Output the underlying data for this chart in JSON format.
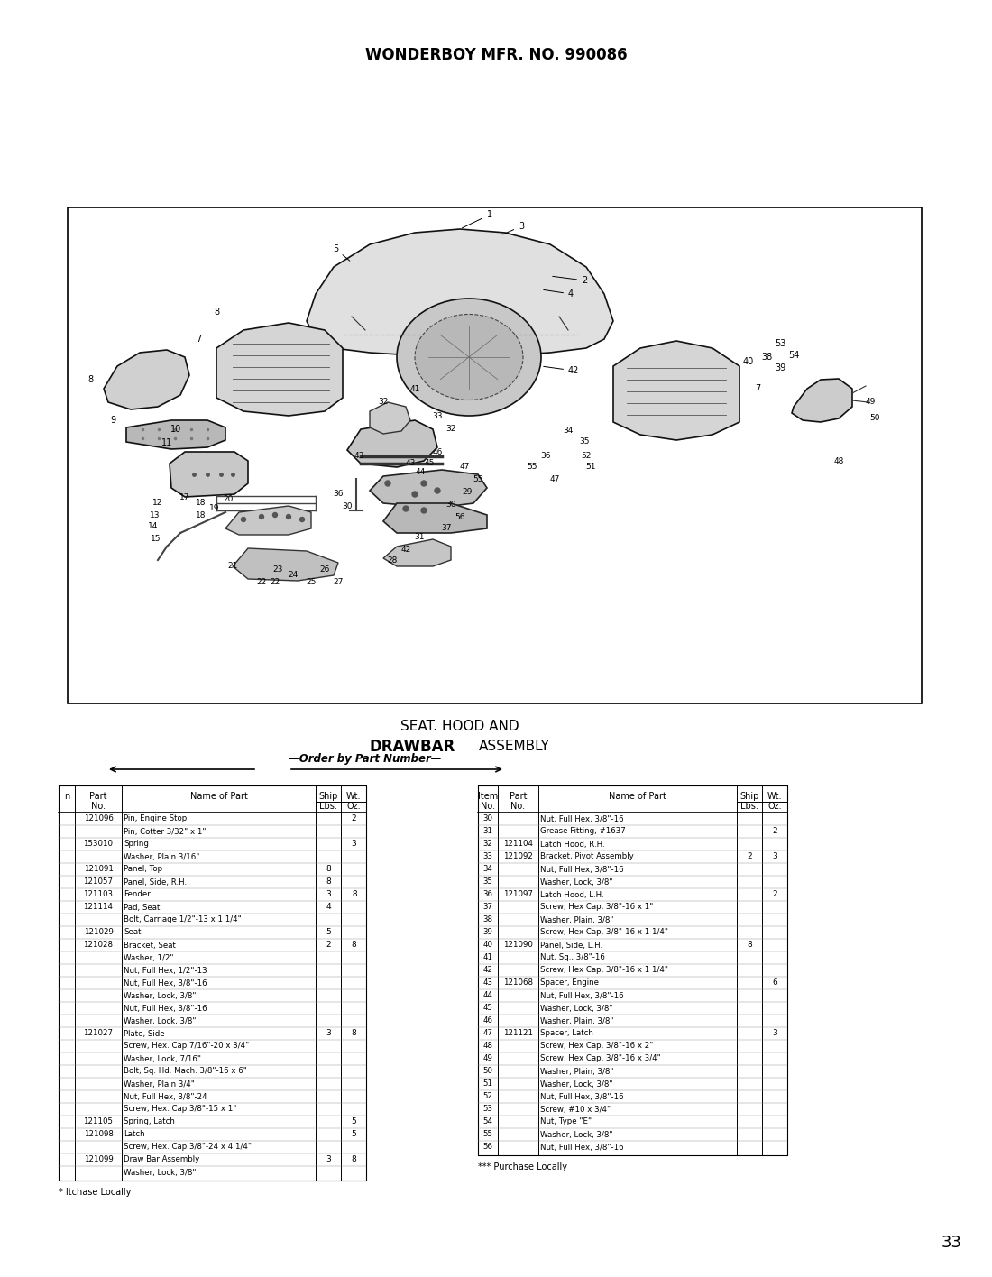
{
  "title": "WONDERBOY MFR. NO. 990086",
  "subtitle_line1": "SEAT. HOOD AND",
  "subtitle_line2_bold": "DRAWBAR",
  "subtitle_line2_rest": " ASSEMBLY",
  "page_number": "33",
  "bg": "#ffffff",
  "left_table_rows": [
    [
      "",
      "121096",
      "Pin, Engine Stop",
      "",
      "2"
    ],
    [
      "",
      "",
      "Pin, Cotter 3/32\" x 1\"",
      "",
      ""
    ],
    [
      "",
      "153010",
      "Spring",
      "",
      "3"
    ],
    [
      "",
      "",
      "Washer, Plain 3/16\"",
      "",
      ""
    ],
    [
      "",
      "121091",
      "Panel, Top",
      "8",
      ""
    ],
    [
      "",
      "121057",
      "Panel, Side, R.H.",
      "8",
      ""
    ],
    [
      "",
      "121103",
      "Fender",
      "3",
      ".8"
    ],
    [
      "",
      "121114",
      "Pad, Seat",
      "4",
      ""
    ],
    [
      "",
      "",
      "Bolt, Carriage 1/2\"-13 x 1 1/4\"",
      "",
      ""
    ],
    [
      "",
      "121029",
      "Seat",
      "5",
      ""
    ],
    [
      "",
      "121028",
      "Bracket, Seat",
      "2",
      "8"
    ],
    [
      "",
      "",
      "Washer, 1/2\"",
      "",
      ""
    ],
    [
      "",
      "",
      "Nut, Full Hex, 1/2\"-13",
      "",
      ""
    ],
    [
      "",
      "",
      "Nut, Full Hex, 3/8\"-16",
      "",
      ""
    ],
    [
      "",
      "",
      "Washer, Lock, 3/8\"",
      "",
      ""
    ],
    [
      "",
      "",
      "Nut, Full Hex, 3/8\"-16",
      "",
      ""
    ],
    [
      "",
      "",
      "Washer, Lock, 3/8\"",
      "",
      ""
    ],
    [
      "",
      "121027",
      "Plate, Side",
      "3",
      "8"
    ],
    [
      "",
      "",
      "Screw, Hex. Cap 7/16\"-20 x 3/4\"",
      "",
      ""
    ],
    [
      "",
      "",
      "Washer, Lock, 7/16\"",
      "",
      ""
    ],
    [
      "",
      "",
      "Bolt, Sq. Hd. Mach. 3/8\"-16 x 6\"",
      "",
      ""
    ],
    [
      "",
      "",
      "Washer, Plain 3/4\"",
      "",
      ""
    ],
    [
      "",
      "",
      "Nut, Full Hex, 3/8\"-24",
      "",
      ""
    ],
    [
      "",
      "",
      "Screw, Hex. Cap 3/8\"-15 x 1\"",
      "",
      ""
    ],
    [
      "",
      "121105",
      "Spring, Latch",
      "",
      "5"
    ],
    [
      "",
      "121098",
      "Latch",
      "",
      "5"
    ],
    [
      "",
      "",
      "Screw, Hex. Cap 3/8\"-24 x 4 1/4\"",
      "",
      ""
    ],
    [
      "",
      "121099",
      "Draw Bar Assembly",
      "3",
      "8"
    ],
    [
      "",
      "",
      "Washer, Lock, 3/8\"",
      "",
      ""
    ]
  ],
  "right_table_rows": [
    [
      "30",
      "",
      "Nut, Full Hex, 3/8\"-16",
      "",
      ""
    ],
    [
      "31",
      "",
      "Grease Fitting, #1637",
      "",
      "2"
    ],
    [
      "32",
      "121104",
      "Latch Hood, R.H.",
      "",
      ""
    ],
    [
      "33",
      "121092",
      "Bracket, Pivot Assembly",
      "2",
      "3"
    ],
    [
      "34",
      "",
      "Nut, Full Hex, 3/8\"-16",
      "",
      ""
    ],
    [
      "35",
      "",
      "Washer, Lock, 3/8\"",
      "",
      ""
    ],
    [
      "36",
      "121097",
      "Latch Hood, L.H.",
      "",
      "2"
    ],
    [
      "37",
      "",
      "Screw, Hex Cap, 3/8\"-16 x 1\"",
      "",
      ""
    ],
    [
      "38",
      "",
      "Washer, Plain, 3/8\"",
      "",
      ""
    ],
    [
      "39",
      "",
      "Screw, Hex Cap, 3/8\"-16 x 1 1/4\"",
      "",
      ""
    ],
    [
      "40",
      "121090",
      "Panel, Side, L.H.",
      "8",
      ""
    ],
    [
      "41",
      "",
      "Nut, Sq., 3/8\"-16",
      "",
      ""
    ],
    [
      "42",
      "",
      "Screw, Hex Cap, 3/8\"-16 x 1 1/4\"",
      "",
      ""
    ],
    [
      "43",
      "121068",
      "Spacer, Engine",
      "",
      "6"
    ],
    [
      "44",
      "",
      "Nut, Full Hex, 3/8\"-16",
      "",
      ""
    ],
    [
      "45",
      "",
      "Washer, Lock, 3/8\"",
      "",
      ""
    ],
    [
      "46",
      "",
      "Washer, Plain, 3/8\"",
      "",
      ""
    ],
    [
      "47",
      "121121",
      "Spacer, Latch",
      "",
      "3"
    ],
    [
      "48",
      "",
      "Screw, Hex Cap, 3/8\"-16 x 2\"",
      "",
      ""
    ],
    [
      "49",
      "",
      "Screw, Hex Cap, 3/8\"-16 x 3/4\"",
      "",
      ""
    ],
    [
      "50",
      "",
      "Washer, Plain, 3/8\"",
      "",
      ""
    ],
    [
      "51",
      "",
      "Washer, Lock, 3/8\"",
      "",
      ""
    ],
    [
      "52",
      "",
      "Nut, Full Hex, 3/8\"-16",
      "",
      ""
    ],
    [
      "53",
      "",
      "Screw, #10 x 3/4\"",
      "",
      ""
    ],
    [
      "54",
      "",
      "Nut, Type \"E\"",
      "",
      ""
    ],
    [
      "55",
      "",
      "Washer, Lock, 3/8\"",
      "",
      ""
    ],
    [
      "56",
      "",
      "Nut, Full Hex, 3/8\"-16",
      "",
      ""
    ]
  ]
}
